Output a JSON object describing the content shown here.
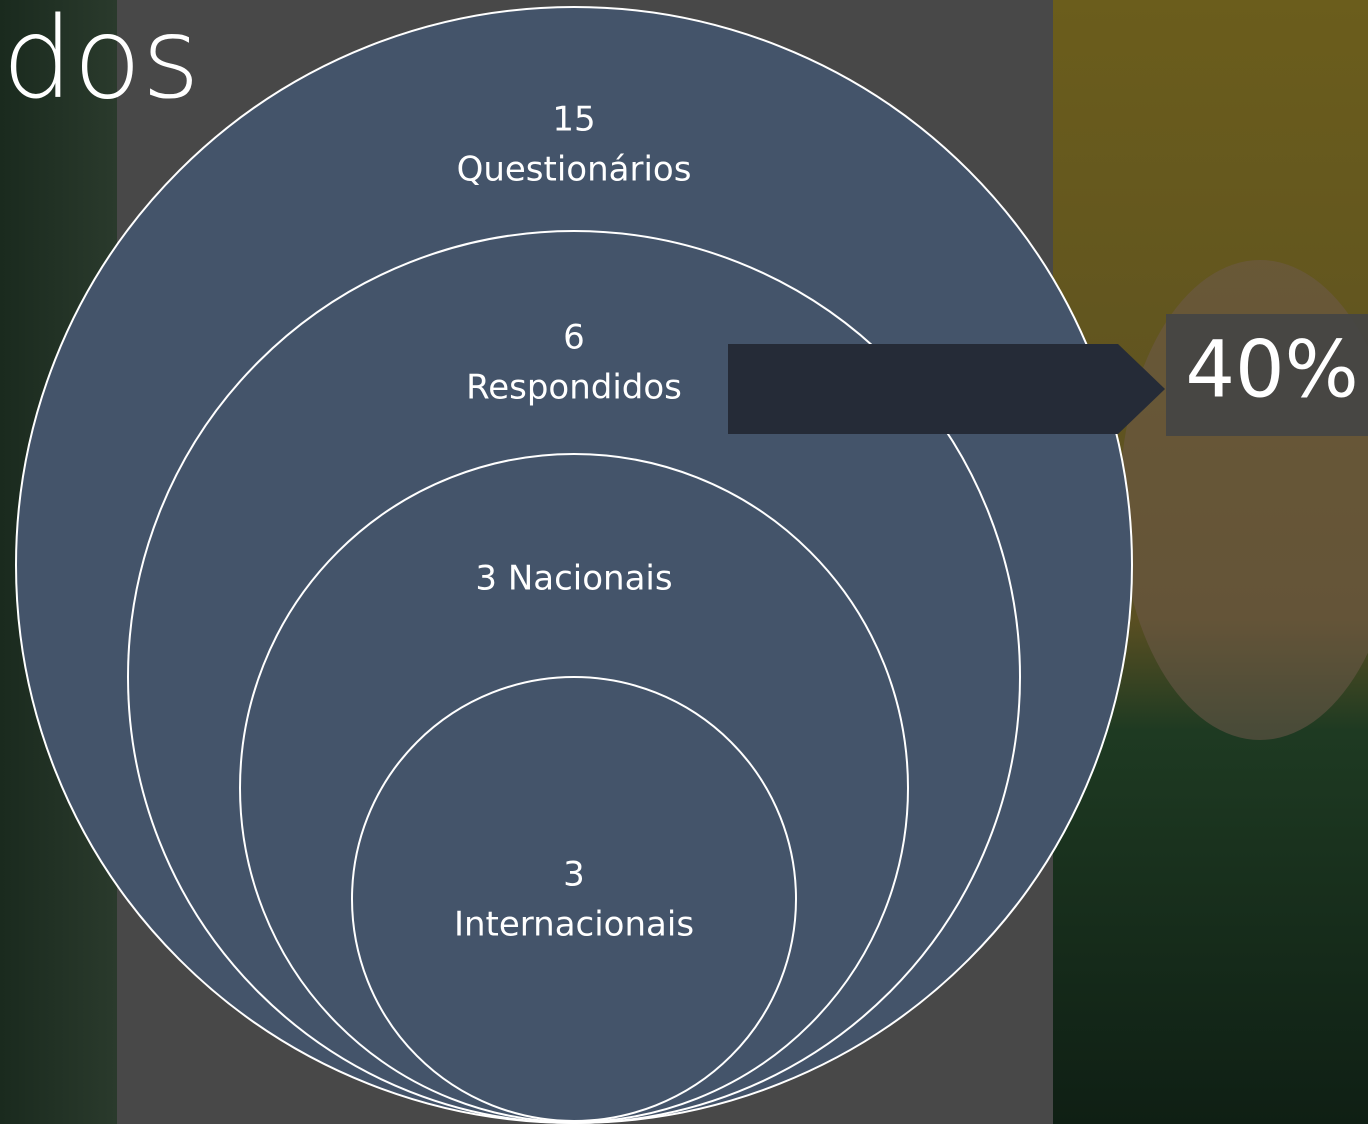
{
  "header": {
    "title": "dos"
  },
  "nodes": [
    {
      "lines": [
        "15",
        "Questionários"
      ]
    },
    {
      "lines": [
        "6",
        "Respondidos"
      ]
    },
    {
      "lines": [
        "3 Nacionais"
      ]
    },
    {
      "lines": [
        "3",
        "Internacionais"
      ]
    }
  ],
  "callout": {
    "label": "40%"
  }
}
